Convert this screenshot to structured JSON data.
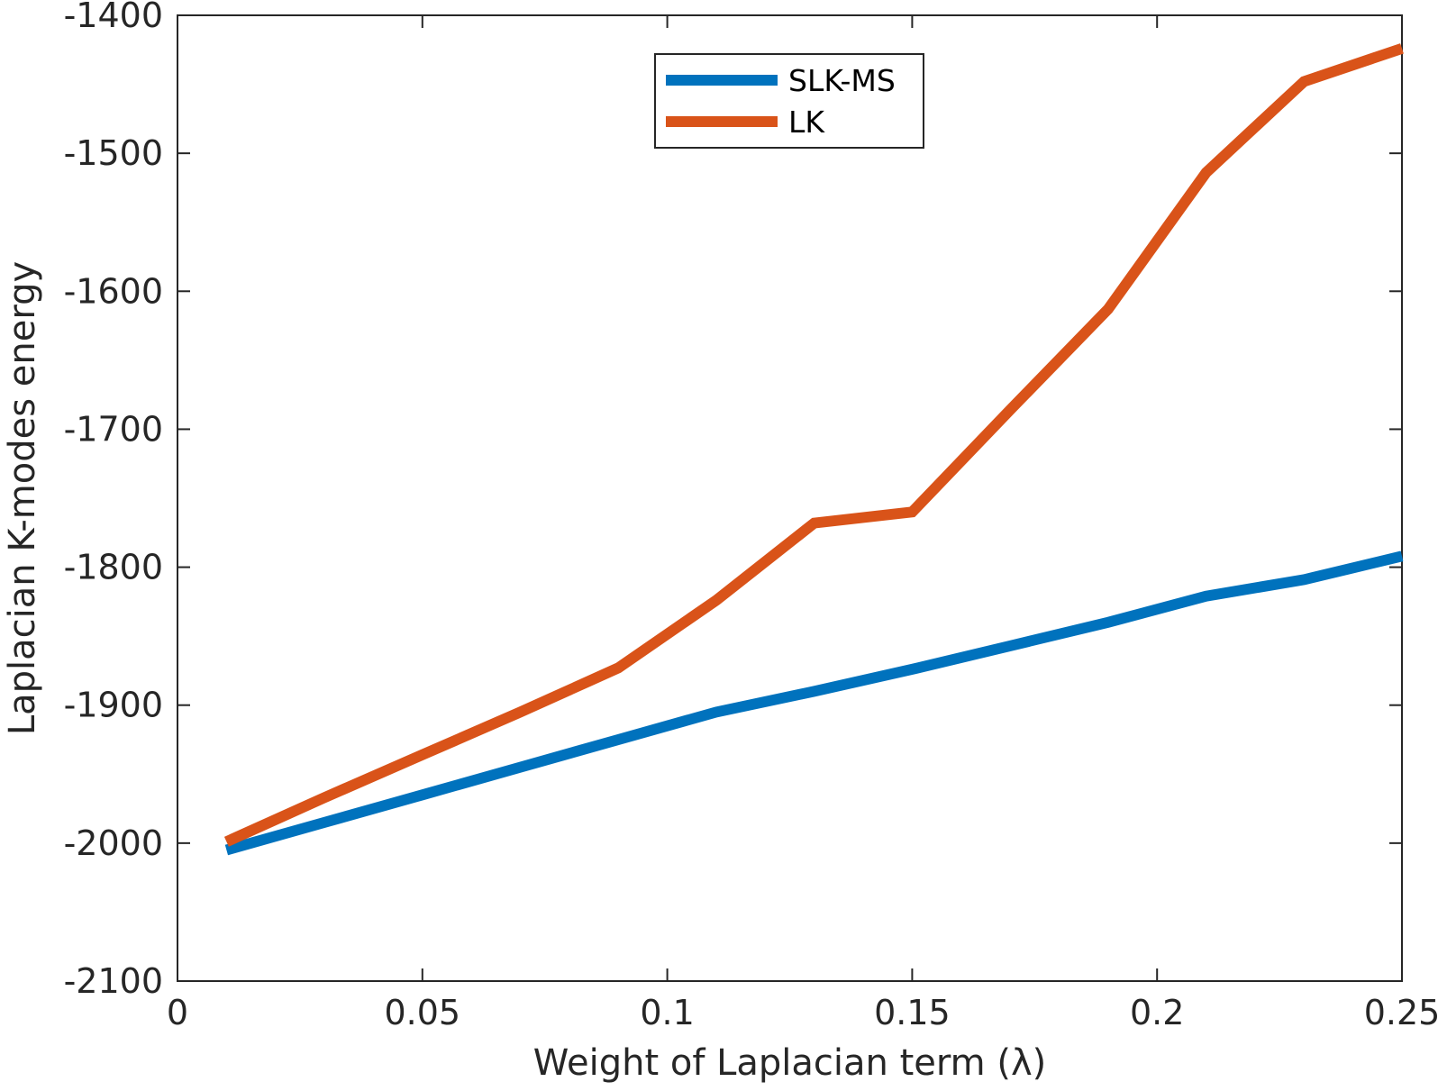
{
  "chart_data": {
    "type": "line",
    "title": "",
    "xlabel": "Weight of Laplacian term (λ)",
    "ylabel": "Laplacian K-modes energy",
    "xlim": [
      0,
      0.25
    ],
    "ylim": [
      -2100,
      -1400
    ],
    "xticks": [
      0,
      0.05,
      0.1,
      0.15,
      0.2,
      0.25
    ],
    "xtick_labels": [
      "0",
      "0.05",
      "0.1",
      "0.15",
      "0.2",
      "0.25"
    ],
    "yticks": [
      -2100,
      -2000,
      -1900,
      -1800,
      -1700,
      -1600,
      -1500,
      -1400
    ],
    "ytick_labels": [
      "-2100",
      "-2000",
      "-1900",
      "-1800",
      "-1700",
      "-1600",
      "-1500",
      "-1400"
    ],
    "grid": false,
    "legend_position": "top-center",
    "series": [
      {
        "name": "SLK-MS",
        "color": "#0072BD",
        "x": [
          0.01,
          0.03,
          0.05,
          0.07,
          0.09,
          0.11,
          0.13,
          0.15,
          0.17,
          0.19,
          0.21,
          0.23,
          0.25
        ],
        "values": [
          -2005,
          -1985,
          -1965,
          -1945,
          -1925,
          -1905,
          -1890,
          -1874,
          -1857,
          -1840,
          -1821,
          -1809,
          -1792
        ]
      },
      {
        "name": "LK",
        "color": "#D95319",
        "x": [
          0.01,
          0.03,
          0.05,
          0.07,
          0.09,
          0.11,
          0.13,
          0.15,
          0.17,
          0.19,
          0.21,
          0.23,
          0.25
        ],
        "values": [
          -1999,
          -1967,
          -1936,
          -1905,
          -1873,
          -1824,
          -1768,
          -1760,
          -1686,
          -1613,
          -1514,
          -1448,
          -1424
        ]
      }
    ]
  }
}
